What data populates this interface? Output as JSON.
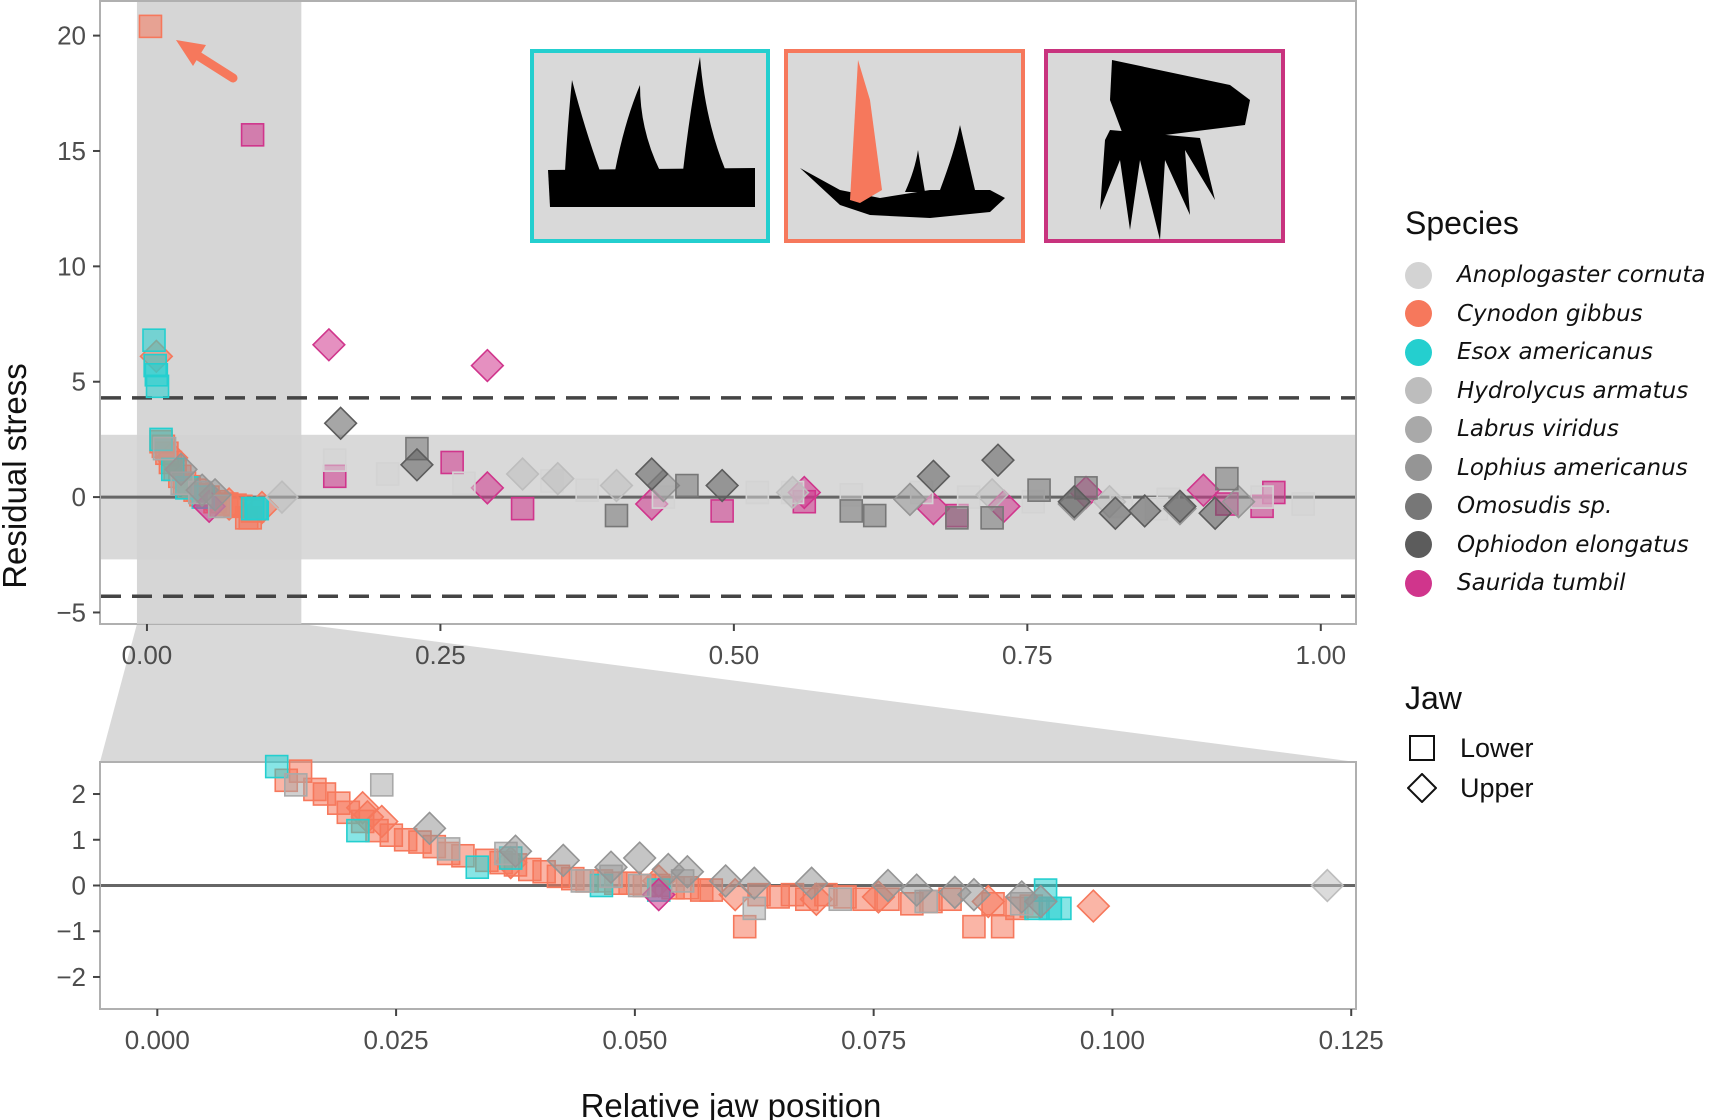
{
  "chart_data": [
    {
      "panel": "main",
      "type": "scatter",
      "ylabel": "Residual stress",
      "xlim": [
        -0.04,
        1.03
      ],
      "ylim": [
        -5.5,
        21.5
      ],
      "xticks": [
        "0.00",
        "0.25",
        "0.50",
        "0.75",
        "1.00"
      ],
      "yticks": [
        "−5",
        "0",
        "5",
        "10",
        "15",
        "20"
      ],
      "reference_lines": {
        "solid": 0,
        "dashed": [
          4.3,
          -4.3
        ],
        "band": [
          -2.7,
          2.7
        ]
      },
      "highlight_x_range": [
        0,
        0.123
      ],
      "series": [
        {
          "species": "Cynodon gibbus",
          "jaw": "Lower",
          "points": [
            [
              0.003,
              20.4
            ],
            [
              0.012,
              2.4
            ],
            [
              0.014,
              2.2
            ],
            [
              0.017,
              1.9
            ],
            [
              0.02,
              1.5
            ],
            [
              0.024,
              1.2
            ],
            [
              0.028,
              0.9
            ],
            [
              0.032,
              0.6
            ],
            [
              0.036,
              0.45
            ],
            [
              0.041,
              0.3
            ],
            [
              0.046,
              0.1
            ],
            [
              0.052,
              0.0
            ],
            [
              0.058,
              -0.2
            ],
            [
              0.063,
              -0.4
            ],
            [
              0.068,
              -0.3
            ],
            [
              0.075,
              -0.35
            ],
            [
              0.08,
              -0.4
            ],
            [
              0.085,
              -0.9
            ],
            [
              0.088,
              -0.9
            ],
            [
              0.09,
              -0.6
            ]
          ]
        },
        {
          "species": "Cynodon gibbus",
          "jaw": "Upper",
          "points": [
            [
              0.008,
              6.1
            ],
            [
              0.021,
              1.7
            ],
            [
              0.037,
              0.4
            ],
            [
              0.053,
              0.0
            ],
            [
              0.07,
              -0.3
            ],
            [
              0.098,
              -0.45
            ]
          ]
        },
        {
          "species": "Esox americanus",
          "jaw": "Lower",
          "points": [
            [
              0.006,
              6.8
            ],
            [
              0.007,
              5.7
            ],
            [
              0.008,
              5.3
            ],
            [
              0.009,
              4.8
            ],
            [
              0.012,
              2.5
            ],
            [
              0.022,
              1.2
            ],
            [
              0.034,
              0.4
            ],
            [
              0.048,
              0.0
            ],
            [
              0.09,
              -0.5
            ],
            [
              0.093,
              -0.5
            ],
            [
              0.094,
              -0.5
            ]
          ]
        },
        {
          "species": "Saurida tumbil",
          "jaw": "Lower",
          "points": [
            [
              0.09,
              15.7
            ],
            [
              0.16,
              0.9
            ],
            [
              0.26,
              1.5
            ],
            [
              0.32,
              -0.5
            ],
            [
              0.49,
              -0.6
            ],
            [
              0.56,
              -0.2
            ],
            [
              0.69,
              -0.8
            ],
            [
              0.92,
              -0.3
            ],
            [
              0.95,
              -0.4
            ],
            [
              0.96,
              0.2
            ]
          ]
        },
        {
          "species": "Saurida tumbil",
          "jaw": "Upper",
          "points": [
            [
              0.155,
              6.6
            ],
            [
              0.29,
              5.7
            ],
            [
              0.29,
              0.4
            ],
            [
              0.43,
              -0.3
            ],
            [
              0.56,
              0.2
            ],
            [
              0.67,
              -0.5
            ],
            [
              0.73,
              -0.4
            ],
            [
              0.8,
              0.2
            ],
            [
              0.9,
              0.3
            ],
            [
              0.053,
              -0.4
            ]
          ]
        },
        {
          "species": "Anoplogaster cornuta",
          "jaw": "Lower",
          "points": [
            [
              0.16,
              1.6
            ],
            [
              0.205,
              1.0
            ],
            [
              0.27,
              0.6
            ],
            [
              0.345,
              0.7
            ],
            [
              0.375,
              0.3
            ],
            [
              0.44,
              0.0
            ],
            [
              0.52,
              0.2
            ],
            [
              0.55,
              0.2
            ],
            [
              0.6,
              0.1
            ],
            [
              0.66,
              0.2
            ],
            [
              0.7,
              0.0
            ],
            [
              0.755,
              -0.2
            ],
            [
              0.83,
              -0.4
            ],
            [
              0.86,
              -0.5
            ],
            [
              0.87,
              -0.1
            ],
            [
              0.95,
              0.0
            ],
            [
              0.985,
              -0.3
            ]
          ]
        },
        {
          "species": "Hydrolycus armatus",
          "jaw": "Upper",
          "points": [
            [
              0.115,
              0.0
            ],
            [
              0.32,
              1.0
            ],
            [
              0.35,
              0.8
            ],
            [
              0.4,
              0.5
            ],
            [
              0.55,
              0.2
            ],
            [
              0.72,
              0.1
            ],
            [
              0.82,
              -0.2
            ]
          ]
        },
        {
          "species": "Labrus viridus",
          "jaw": "Lower",
          "points": [
            [
              0.015,
              2.1
            ],
            [
              0.03,
              0.6
            ],
            [
              0.045,
              0.2
            ],
            [
              0.062,
              -0.4
            ]
          ]
        },
        {
          "species": "Lophius americanus",
          "jaw": "Upper",
          "points": [
            [
              0.029,
              1.2
            ],
            [
              0.047,
              0.3
            ],
            [
              0.058,
              0.1
            ],
            [
              0.44,
              0.5
            ],
            [
              0.65,
              -0.1
            ],
            [
              0.79,
              -0.3
            ],
            [
              0.88,
              -0.5
            ],
            [
              0.93,
              -0.2
            ]
          ]
        },
        {
          "species": "Omosudis sp.",
          "jaw": "Lower",
          "points": [
            [
              0.23,
              2.1
            ],
            [
              0.4,
              -0.8
            ],
            [
              0.46,
              0.5
            ],
            [
              0.6,
              -0.6
            ],
            [
              0.62,
              -0.8
            ],
            [
              0.69,
              -0.9
            ],
            [
              0.72,
              -0.9
            ],
            [
              0.76,
              0.3
            ],
            [
              0.8,
              0.4
            ],
            [
              0.92,
              0.8
            ]
          ]
        },
        {
          "species": "Ophiodon elongatus",
          "jaw": "Upper",
          "points": [
            [
              0.165,
              3.2
            ],
            [
              0.23,
              1.4
            ],
            [
              0.43,
              1.0
            ],
            [
              0.49,
              0.5
            ],
            [
              0.67,
              0.9
            ],
            [
              0.725,
              1.6
            ],
            [
              0.79,
              -0.2
            ],
            [
              0.825,
              -0.7
            ],
            [
              0.85,
              -0.6
            ],
            [
              0.88,
              -0.4
            ],
            [
              0.91,
              -0.7
            ]
          ]
        }
      ]
    },
    {
      "panel": "zoom",
      "type": "scatter",
      "xlabel": "Relative jaw position",
      "xlim": [
        -0.006,
        0.1255
      ],
      "ylim": [
        -2.7,
        2.7
      ],
      "xticks": [
        "0.000",
        "0.025",
        "0.050",
        "0.075",
        "0.100",
        "0.125"
      ],
      "yticks": [
        "−2",
        "−1",
        "0",
        "1",
        "2"
      ],
      "reference_lines": {
        "solid": 0
      },
      "series": [
        {
          "species": "Cynodon gibbus",
          "jaw": "Lower",
          "points": [
            [
              0.0135,
              2.3
            ],
            [
              0.015,
              2.5
            ],
            [
              0.0165,
              2.1
            ],
            [
              0.0175,
              2.0
            ],
            [
              0.019,
              1.8
            ],
            [
              0.02,
              1.6
            ],
            [
              0.0215,
              1.4
            ],
            [
              0.023,
              1.2
            ],
            [
              0.0245,
              1.1
            ],
            [
              0.026,
              1.0
            ],
            [
              0.0275,
              0.95
            ],
            [
              0.029,
              0.85
            ],
            [
              0.0305,
              0.7
            ],
            [
              0.032,
              0.65
            ],
            [
              0.0345,
              0.55
            ],
            [
              0.036,
              0.5
            ],
            [
              0.0375,
              0.45
            ],
            [
              0.039,
              0.35
            ],
            [
              0.0405,
              0.3
            ],
            [
              0.042,
              0.2
            ],
            [
              0.0435,
              0.15
            ],
            [
              0.045,
              0.1
            ],
            [
              0.0465,
              0.1
            ],
            [
              0.048,
              0.05
            ],
            [
              0.0495,
              0.05
            ],
            [
              0.051,
              0.0
            ],
            [
              0.0525,
              0.0
            ],
            [
              0.054,
              -0.05
            ],
            [
              0.0555,
              -0.05
            ],
            [
              0.057,
              -0.1
            ],
            [
              0.058,
              -0.1
            ],
            [
              0.0615,
              -0.9
            ],
            [
              0.063,
              -0.2
            ],
            [
              0.065,
              -0.25
            ],
            [
              0.0665,
              -0.2
            ],
            [
              0.068,
              -0.3
            ],
            [
              0.07,
              -0.2
            ],
            [
              0.072,
              -0.25
            ],
            [
              0.074,
              -0.3
            ],
            [
              0.0765,
              -0.3
            ],
            [
              0.079,
              -0.4
            ],
            [
              0.081,
              -0.35
            ],
            [
              0.083,
              -0.3
            ],
            [
              0.0855,
              -0.9
            ],
            [
              0.0885,
              -0.9
            ],
            [
              0.0875,
              -0.4
            ],
            [
              0.09,
              -0.5
            ],
            [
              0.0915,
              -0.45
            ]
          ]
        },
        {
          "species": "Cynodon gibbus",
          "jaw": "Upper",
          "points": [
            [
              0.0215,
              1.7
            ],
            [
              0.022,
              1.5
            ],
            [
              0.0235,
              1.4
            ],
            [
              0.037,
              0.5
            ],
            [
              0.0525,
              0.1
            ],
            [
              0.0605,
              -0.2
            ],
            [
              0.069,
              -0.3
            ],
            [
              0.0755,
              -0.25
            ],
            [
              0.087,
              -0.35
            ],
            [
              0.098,
              -0.45
            ]
          ]
        },
        {
          "species": "Esox americanus",
          "jaw": "Lower",
          "points": [
            [
              0.0125,
              2.6
            ],
            [
              0.021,
              1.2
            ],
            [
              0.0335,
              0.4
            ],
            [
              0.037,
              0.6
            ],
            [
              0.0465,
              0.0
            ],
            [
              0.0525,
              -0.1
            ],
            [
              0.092,
              -0.5
            ],
            [
              0.093,
              -0.1
            ],
            [
              0.0935,
              -0.5
            ],
            [
              0.0945,
              -0.5
            ]
          ]
        },
        {
          "species": "Saurida tumbil",
          "jaw": "Upper",
          "points": [
            [
              0.0525,
              -0.2
            ]
          ]
        },
        {
          "species": "Labrus viridus",
          "jaw": "Lower",
          "points": [
            [
              0.0145,
              2.2
            ],
            [
              0.0235,
              2.2
            ],
            [
              0.0305,
              0.8
            ],
            [
              0.0365,
              0.7
            ],
            [
              0.0445,
              0.1
            ],
            [
              0.0475,
              0.2
            ],
            [
              0.0505,
              0.0
            ],
            [
              0.055,
              0.1
            ],
            [
              0.0625,
              -0.5
            ],
            [
              0.0715,
              -0.3
            ],
            [
              0.0805,
              -0.35
            ],
            [
              0.0905,
              -0.4
            ]
          ]
        },
        {
          "species": "Lophius americanus",
          "jaw": "Upper",
          "points": [
            [
              0.0285,
              1.25
            ],
            [
              0.0375,
              0.75
            ],
            [
              0.0425,
              0.55
            ],
            [
              0.0475,
              0.4
            ],
            [
              0.0505,
              0.6
            ],
            [
              0.0535,
              0.35
            ],
            [
              0.0555,
              0.3
            ],
            [
              0.0595,
              0.1
            ],
            [
              0.0625,
              0.05
            ],
            [
              0.0685,
              0.05
            ],
            [
              0.0765,
              0.0
            ],
            [
              0.0795,
              -0.1
            ],
            [
              0.0835,
              -0.15
            ],
            [
              0.0855,
              -0.2
            ],
            [
              0.0905,
              -0.25
            ],
            [
              0.0925,
              -0.35
            ]
          ]
        },
        {
          "species": "Hydrolycus armatus",
          "jaw": "Upper",
          "points": [
            [
              0.1225,
              0.0
            ]
          ]
        }
      ]
    }
  ],
  "legend": {
    "species_title": "Species",
    "species": [
      {
        "name": "Anoplogaster cornuta",
        "color": "#d3d3d3"
      },
      {
        "name": "Cynodon gibbus",
        "color": "#f6785c"
      },
      {
        "name": "Esox americanus",
        "color": "#24cfcf"
      },
      {
        "name": "Hydrolycus armatus",
        "color": "#bdbdbd"
      },
      {
        "name": "Labrus viridus",
        "color": "#a9a9a9"
      },
      {
        "name": "Lophius americanus",
        "color": "#959595"
      },
      {
        "name": "Omosudis sp.",
        "color": "#777777"
      },
      {
        "name": "Ophiodon elongatus",
        "color": "#5c5c5c"
      },
      {
        "name": "Saurida tumbil",
        "color": "#d0358c"
      }
    ],
    "jaw_title": "Jaw",
    "jaw": [
      {
        "name": "Lower",
        "shape": "square"
      },
      {
        "name": "Upper",
        "shape": "diamond"
      }
    ]
  },
  "insets": [
    {
      "name": "esox-teeth-silhouette",
      "border_color": "#24cfcf"
    },
    {
      "name": "cynodon-teeth-silhouette",
      "border_color": "#f6785c"
    },
    {
      "name": "saurida-teeth-silhouette",
      "border_color": "#c8337e"
    }
  ]
}
